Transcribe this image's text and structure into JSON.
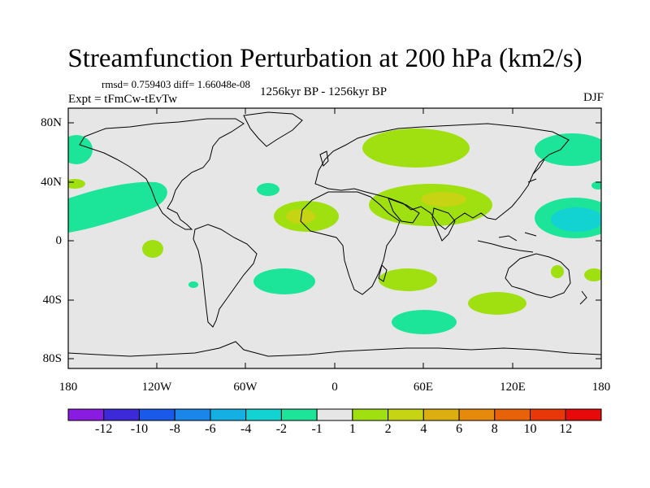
{
  "title": "Streamfunction Perturbation at 200 hPa (km2/s)",
  "stats_line": "rmsd= 0.759403 diff= 1.66048e-08",
  "experiment_label": "Expt = tFmCw-tEvTw",
  "period_label": "1256kyr BP - 1256kyr BP",
  "season_label": "DJF",
  "lat_ticks": [
    "80N",
    "40N",
    "0",
    "40S",
    "80S"
  ],
  "lon_ticks": [
    "180",
    "120W",
    "60W",
    "0",
    "60E",
    "120E",
    "180"
  ],
  "colorbar": {
    "labels": [
      "-12",
      "-10",
      "-8",
      "-6",
      "-4",
      "-2",
      "-1",
      "1",
      "2",
      "4",
      "6",
      "8",
      "10",
      "12"
    ],
    "colors": [
      "#8a1be0",
      "#3c2ad8",
      "#1a5ae8",
      "#1a86ea",
      "#14b0e4",
      "#12d2d2",
      "#1ce59a",
      "#e6e6e6",
      "#a0e010",
      "#c6d414",
      "#dcae10",
      "#e68a0c",
      "#e8620a",
      "#e8380a",
      "#e80a0a"
    ]
  },
  "colors": {
    "background": "#e6e6e6",
    "positive_1_2": "#a0e010",
    "positive_2_4": "#c6d414",
    "negative_1_2": "#1ce59a",
    "negative_2_4": "#12d2d2",
    "coast": "#000000"
  }
}
